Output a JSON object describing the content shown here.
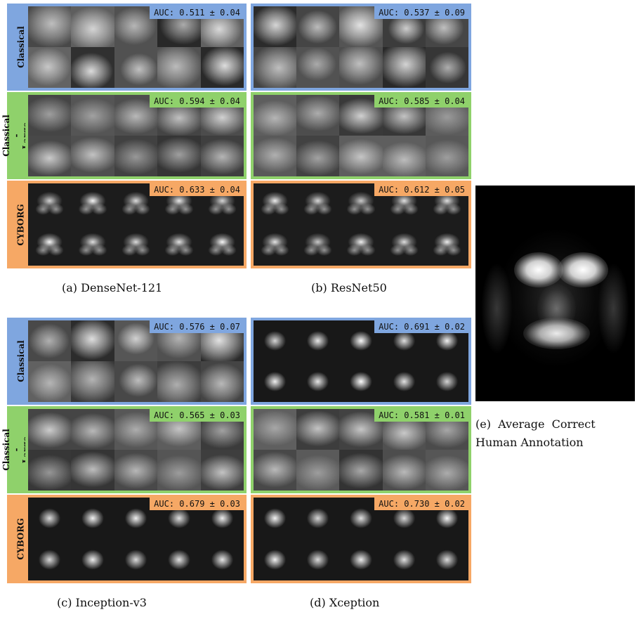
{
  "row_labels": {
    "classical": "Classical",
    "large_data": "Classical -\nLarge Data",
    "cyborg": "CYBORG"
  },
  "colors": {
    "classical": "#7fa6df",
    "large_data": "#8fd16b",
    "cyborg": "#f6a865"
  },
  "models": {
    "a": {
      "caption": "(a) DenseNet-121",
      "auc_classical": "AUC: 0.511 ± 0.04",
      "auc_large_data": "AUC: 0.594 ± 0.04",
      "auc_cyborg": "AUC: 0.633 ± 0.04"
    },
    "b": {
      "caption": "(b) ResNet50",
      "auc_classical": "AUC: 0.537 ± 0.09",
      "auc_large_data": "AUC: 0.585 ± 0.04",
      "auc_cyborg": "AUC: 0.612 ± 0.05"
    },
    "c": {
      "caption": "(c) Inception-v3",
      "auc_classical": "AUC: 0.576 ± 0.07",
      "auc_large_data": "AUC: 0.565 ± 0.03",
      "auc_cyborg": "AUC: 0.679 ± 0.03"
    },
    "d": {
      "caption": "(d) Xception",
      "auc_classical": "AUC: 0.691 ± 0.02",
      "auc_large_data": "AUC: 0.581 ± 0.01",
      "auc_cyborg": "AUC: 0.730 ± 0.02"
    }
  },
  "average_annotation": {
    "caption_line1": "(e)  Average  Correct",
    "caption_line2": "Human Annotation"
  }
}
